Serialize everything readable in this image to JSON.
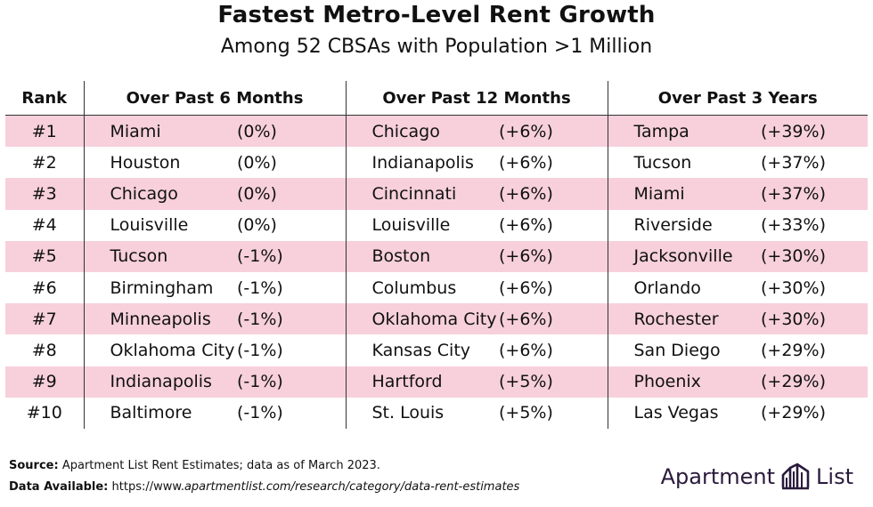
{
  "title": "Fastest Metro-Level Rent Growth",
  "subtitle": "Among 52 CBSAs with Population >1 Million",
  "headers": {
    "rank": "Rank",
    "col1": "Over Past 6 Months",
    "col2": "Over Past 12 Months",
    "col3": "Over Past 3 Years"
  },
  "rows": [
    {
      "rank": "#1",
      "c1": "Miami",
      "v1": "(0%)",
      "c2": "Chicago",
      "v2": "(+6%)",
      "c3": "Tampa",
      "v3": "(+39%)"
    },
    {
      "rank": "#2",
      "c1": "Houston",
      "v1": "(0%)",
      "c2": "Indianapolis",
      "v2": "(+6%)",
      "c3": "Tucson",
      "v3": "(+37%)"
    },
    {
      "rank": "#3",
      "c1": "Chicago",
      "v1": "(0%)",
      "c2": "Cincinnati",
      "v2": "(+6%)",
      "c3": "Miami",
      "v3": "(+37%)"
    },
    {
      "rank": "#4",
      "c1": "Louisville",
      "v1": "(0%)",
      "c2": "Louisville",
      "v2": "(+6%)",
      "c3": "Riverside",
      "v3": "(+33%)"
    },
    {
      "rank": "#5",
      "c1": "Tucson",
      "v1": "(-1%)",
      "c2": "Boston",
      "v2": "(+6%)",
      "c3": "Jacksonville",
      "v3": "(+30%)"
    },
    {
      "rank": "#6",
      "c1": "Birmingham",
      "v1": "(-1%)",
      "c2": "Columbus",
      "v2": "(+6%)",
      "c3": "Orlando",
      "v3": "(+30%)"
    },
    {
      "rank": "#7",
      "c1": "Minneapolis",
      "v1": "(-1%)",
      "c2": "Oklahoma City",
      "v2": "(+6%)",
      "c3": "Rochester",
      "v3": "(+30%)"
    },
    {
      "rank": "#8",
      "c1": "Oklahoma City",
      "v1": "(-1%)",
      "c2": "Kansas City",
      "v2": "(+6%)",
      "c3": "San Diego",
      "v3": "(+29%)"
    },
    {
      "rank": "#9",
      "c1": "Indianapolis",
      "v1": "(-1%)",
      "c2": "Hartford",
      "v2": "(+5%)",
      "c3": "Phoenix",
      "v3": "(+29%)"
    },
    {
      "rank": "#10",
      "c1": "Baltimore",
      "v1": "(-1%)",
      "c2": "St. Louis",
      "v2": "(+5%)",
      "c3": "Las Vegas",
      "v3": "(+29%)"
    }
  ],
  "footer": {
    "source_label": "Source:",
    "source_text": "Apartment List Rent Estimates; data as of March 2023.",
    "data_label": "Data Available:",
    "data_url_prefix": "https://www.",
    "data_url_italic": "apartmentlist.com/research/category/data-rent-estimates"
  },
  "logo": {
    "text_left": "Apartment",
    "text_right": "List",
    "icon": "apartment-list-logo-icon"
  },
  "colors": {
    "shaded_row": "#f7d0dc",
    "text": "#111111",
    "logo": "#2a1a3c"
  }
}
